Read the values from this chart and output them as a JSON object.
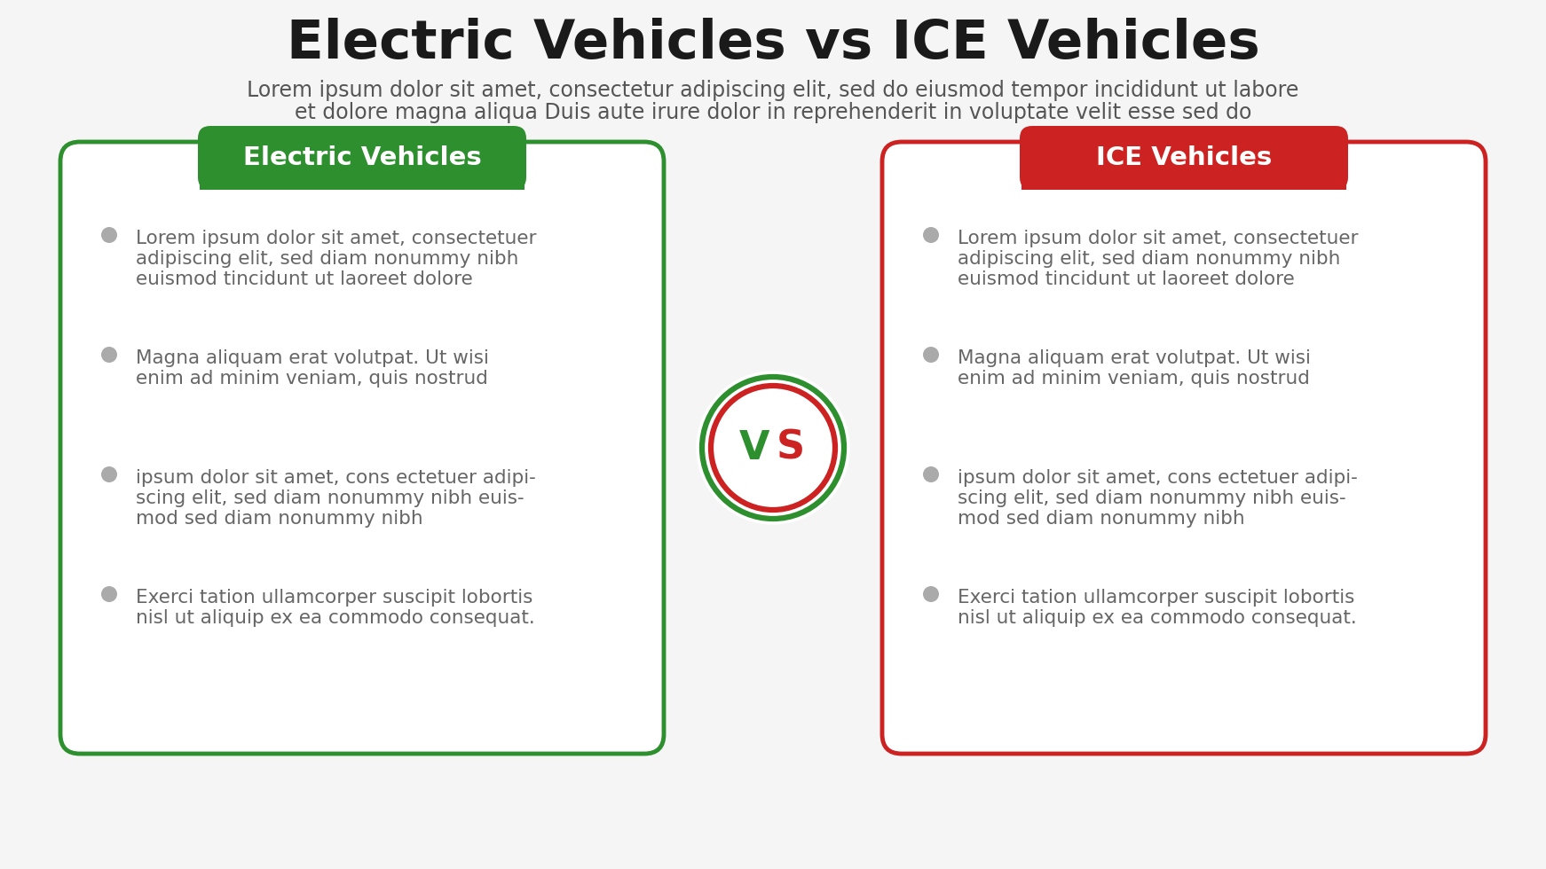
{
  "title": "Electric Vehicles vs ICE Vehicles",
  "subtitle_line1": "Lorem ipsum dolor sit amet, consectetur adipiscing elit, sed do eiusmod tempor incididunt ut labore",
  "subtitle_line2": "et dolore magna aliqua Duis aute irure dolor in reprehenderit in voluptate velit esse sed do",
  "left_header": "Electric Vehicles",
  "right_header": "ICE Vehicles",
  "left_color": "#2d8f2d",
  "right_color": "#cc2222",
  "vs_green": "#2d8f2d",
  "vs_red": "#cc2222",
  "box_border_left": "#2d8f2d",
  "box_border_right": "#cc2222",
  "bullet_color": "#aaaaaa",
  "text_color": "#666666",
  "bg_color": "#f5f5f5",
  "bullet_points": [
    "Lorem ipsum dolor sit amet, consectetuer\nadipiscing elit, sed diam nonummy nibh\neuismod tincidunt ut laoreet dolore",
    "Magna aliquam erat volutpat. Ut wisi\nenim ad minim veniam, quis nostrud",
    "ipsum dolor sit amet, cons ectetuer adipi-\nscing elit, sed diam nonummy nibh euis-\nmod sed diam nonummy nibh",
    "Exerci tation ullamcorper suscipit lobortis\nnisl ut aliquip ex ea commodo consequat."
  ]
}
